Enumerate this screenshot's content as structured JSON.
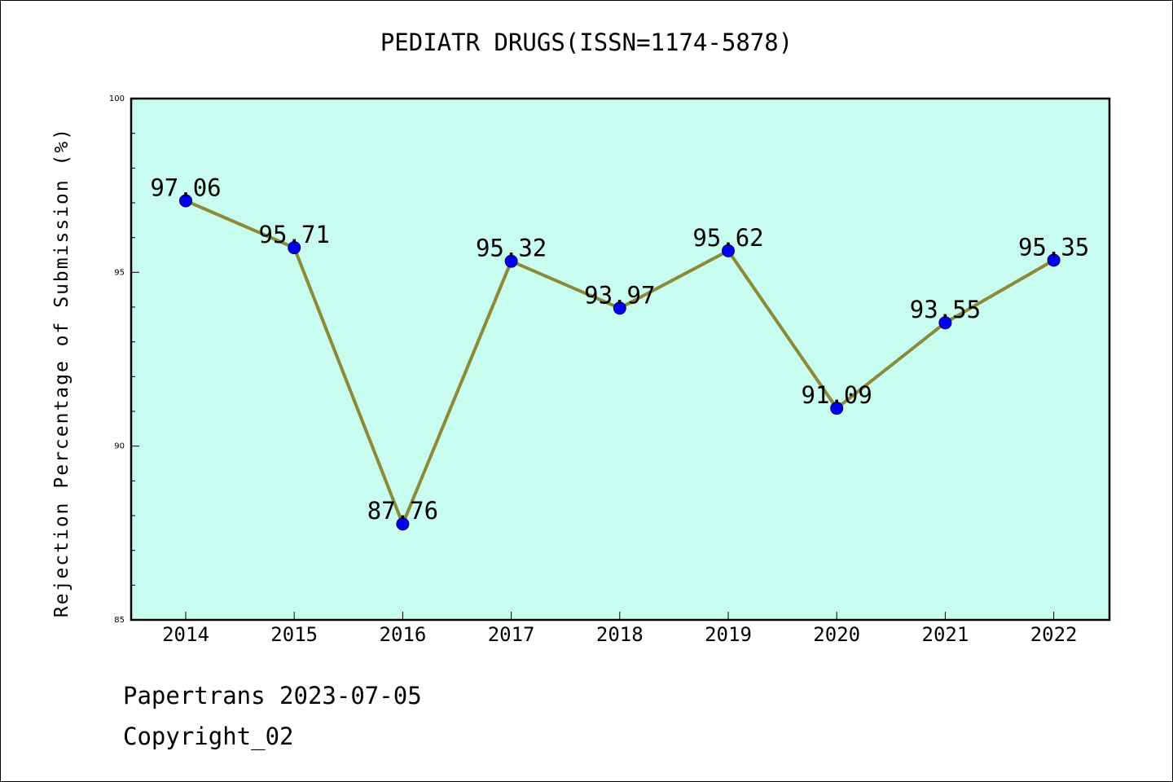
{
  "chart_data": {
    "type": "line",
    "title": "PEDIATR DRUGS(ISSN=1174-5878)",
    "xlabel": "",
    "ylabel": "Rejection Percentage of Submission (%)",
    "categories": [
      "2014",
      "2015",
      "2016",
      "2017",
      "2018",
      "2019",
      "2020",
      "2021",
      "2022"
    ],
    "values": [
      97.06,
      95.71,
      87.76,
      95.32,
      93.97,
      95.62,
      91.09,
      93.55,
      95.35
    ],
    "data_labels": [
      "97.06",
      "95.71",
      "87.76",
      "95.32",
      "93.97",
      "95.62",
      "91.09",
      "93.55",
      "95.35"
    ],
    "ylim": [
      85,
      100
    ],
    "yticks": [
      85,
      90,
      95,
      100
    ],
    "ytick_labels": [
      "85",
      "90",
      "95",
      "100"
    ],
    "y_minor_step": 1,
    "grid": false,
    "colors": {
      "plot_background": "#c8fcee",
      "line": "#8b8a3a",
      "marker": "#0000ee",
      "marker_edge": "#00006a"
    }
  },
  "footer": {
    "line1": "Papertrans 2023-07-05",
    "line2": "Copyright_02"
  }
}
